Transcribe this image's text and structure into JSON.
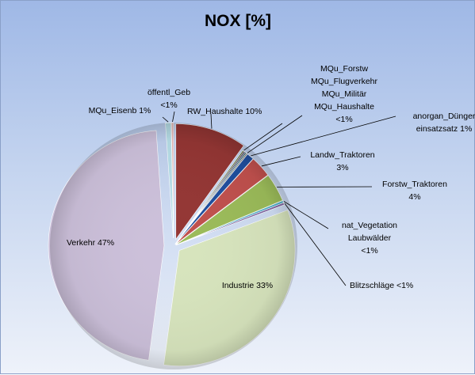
{
  "chart_data": {
    "type": "pie",
    "title": "NOX [%]",
    "slices": [
      {
        "name": "RW_Haushalte",
        "value": 10,
        "label": [
          "RW_Haushalte 10%"
        ],
        "color": "#943634"
      },
      {
        "name": "MQu_Forstw",
        "value": 0.2,
        "label": [
          "MQu_Forstw"
        ],
        "color": "#4f6228"
      },
      {
        "name": "MQu_Flugverkehr",
        "value": 0.2,
        "label": [
          "MQu_Flugverkehr"
        ],
        "color": "#403151"
      },
      {
        "name": "MQu_Militär",
        "value": 0.2,
        "label": [
          "MQu_Militär"
        ],
        "color": "#215967"
      },
      {
        "name": "MQu_Haushalte",
        "value": 0.2,
        "label": [
          "MQu_Haushalte",
          "<1%"
        ],
        "color": "#7f7f7f"
      },
      {
        "name": "anorgan_Dünger einsatzsatz",
        "value": 1,
        "label": [
          "anorgan_Dünger",
          "einsatzsatz 1%"
        ],
        "color": "#1f4e9e"
      },
      {
        "name": "Landw_Traktoren",
        "value": 3,
        "label": [
          "Landw_Traktoren",
          "3%"
        ],
        "color": "#c0504d"
      },
      {
        "name": "Forstw_Traktoren",
        "value": 4,
        "label": [
          "Forstw_Traktoren",
          "4%"
        ],
        "color": "#9bbb59"
      },
      {
        "name": "nat_Vegetation Laubwälder",
        "value": 0.3,
        "label": [
          "nat_Vegetation",
          "Laubwälder",
          "<1%"
        ],
        "color": "#4bacc6"
      },
      {
        "name": "Blitzschläge",
        "value": 0.3,
        "label": [
          "Blitzschläge <1%"
        ],
        "color": "#8064a2"
      },
      {
        "name": "Industrie",
        "value": 33,
        "label": [
          "Industrie 33%"
        ],
        "color": "#d7e4bd"
      },
      {
        "name": "Verkehr",
        "value": 47,
        "label": [
          "Verkehr 47%"
        ],
        "color": "#ccc0da"
      },
      {
        "name": "MQu_Eisenb",
        "value": 0.8,
        "label": [
          "MQu_Eisenb 1%"
        ],
        "color": "#b7dee8"
      },
      {
        "name": "öffentl_Geb",
        "value": 0.3,
        "label": [
          "öffentl_Geb",
          "<1%"
        ],
        "color": "#e6b9b8"
      }
    ]
  }
}
